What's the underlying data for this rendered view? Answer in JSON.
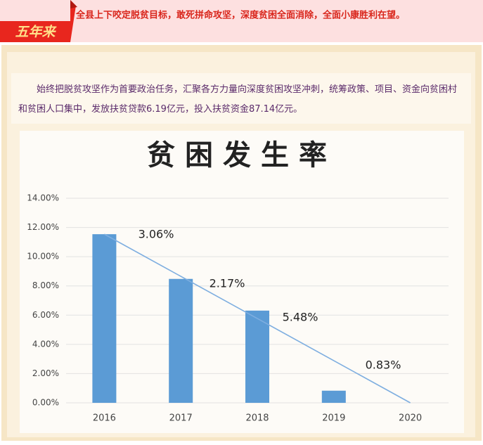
{
  "header": {
    "tab": "五年来",
    "headline": "全县上下咬定脱贫目标，敢死拼命攻坚，深度贫困全面消除，全面小康胜利在望。"
  },
  "paragraph": "始终把脱贫攻坚作为首要政治任务，汇聚各方力量向深度贫困攻坚冲刺，统筹政策、项目、资金向贫困村和贫困人口集中，发放扶贫贷款6.19亿元，投入扶贫资金87.14亿元。",
  "chart_data": {
    "type": "bar",
    "title": "贫困发生率",
    "categories": [
      "2016",
      "2017",
      "2018",
      "2019",
      "2020"
    ],
    "values": [
      11.54,
      8.48,
      6.31,
      0.83,
      0
    ],
    "color": "#5b9bd5",
    "trend_color": "#7eaee0",
    "annotations": [
      "3.06%",
      "2.17%",
      "5.48%",
      "0.83%"
    ],
    "ylim": [
      0,
      14
    ],
    "yticks": [
      {
        "value": 0,
        "label": "0.00%"
      },
      {
        "value": 2,
        "label": "2.00%"
      },
      {
        "value": 4,
        "label": "4.00%"
      },
      {
        "value": 6,
        "label": "6.00%"
      },
      {
        "value": 8,
        "label": "8.00%"
      },
      {
        "value": 10,
        "label": "10.00%"
      },
      {
        "value": 12,
        "label": "12.00%"
      },
      {
        "value": 14,
        "label": "14.00%"
      }
    ],
    "grid": true
  }
}
